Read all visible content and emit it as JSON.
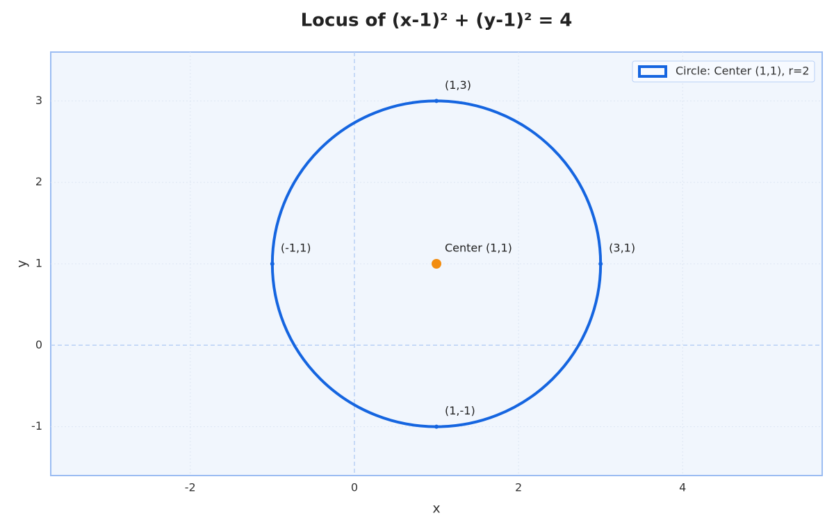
{
  "chart_data": {
    "type": "circle",
    "title": "Locus of (x-1)² + (y-1)² = 4",
    "x_label": "x",
    "y_label": "y",
    "xlim": [
      -3.7,
      5.7
    ],
    "ylim": [
      -1.6,
      3.6
    ],
    "xticks": [
      -2,
      0,
      2,
      4
    ],
    "yticks": [
      -1,
      0,
      1,
      2,
      3
    ],
    "grid": true,
    "legend_loc": "upper right",
    "series": [
      {
        "name": "Circle: Center (1,1), r=2",
        "color": "#1565e0",
        "center_x": 1,
        "center_y": 1,
        "radius": 2
      }
    ],
    "points": {
      "x": [
        1,
        3,
        1,
        -1
      ],
      "y": [
        3,
        1,
        -1,
        1
      ],
      "labels": [
        "(1,3)",
        "(3,1)",
        "(1,-1)",
        "(-1,1)"
      ],
      "color": "#1565e0"
    },
    "center": {
      "x": 1,
      "y": 1,
      "label": "Center (1,1)",
      "color": "#f28c0f"
    }
  }
}
